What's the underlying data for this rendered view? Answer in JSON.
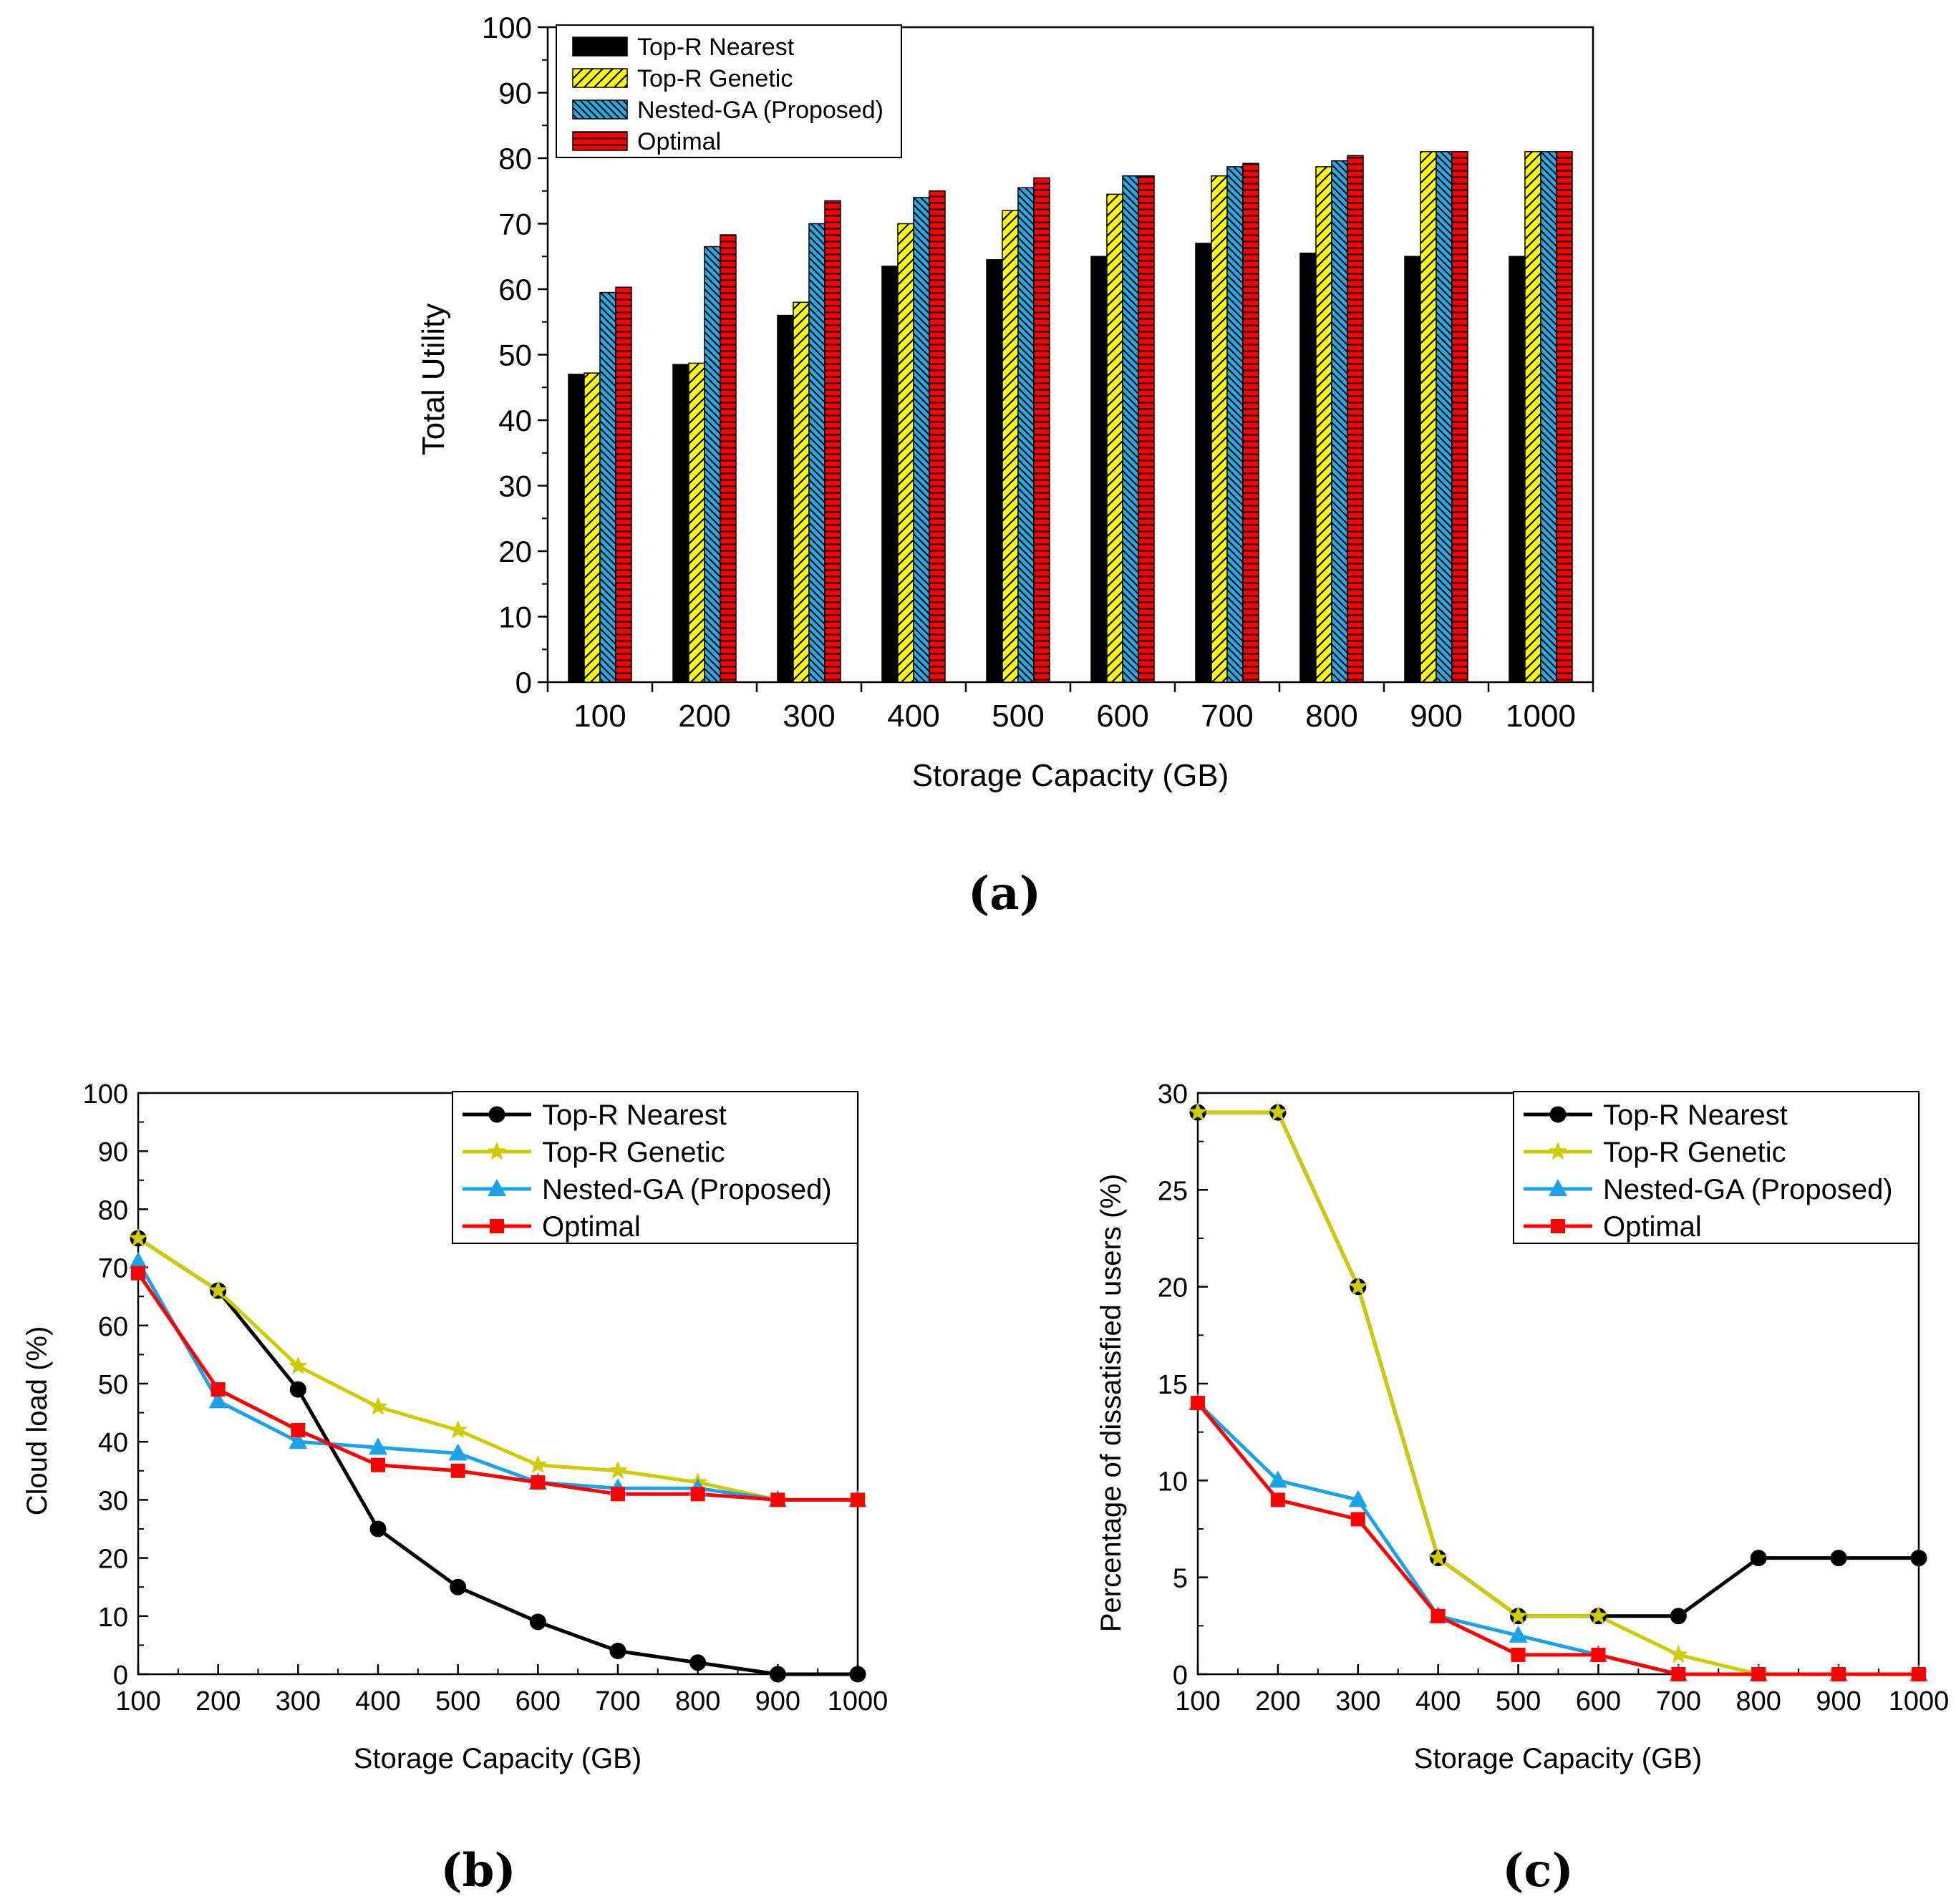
{
  "chart_data": [
    {
      "id": "a",
      "type": "bar",
      "caption": "(a)",
      "xlabel": "Storage Capacity (GB)",
      "ylabel": "Total Utility",
      "categories": [
        "100",
        "200",
        "300",
        "400",
        "500",
        "600",
        "700",
        "800",
        "900",
        "1000"
      ],
      "ylim": [
        0,
        100
      ],
      "yticks": [
        "0",
        "10",
        "20",
        "30",
        "40",
        "50",
        "60",
        "70",
        "80",
        "90",
        "100"
      ],
      "legend_position": "top-left",
      "series": [
        {
          "name": "Top-R Nearest",
          "color": "#000000",
          "pattern": "solid",
          "values": [
            47,
            48.5,
            56,
            63.5,
            64.5,
            65,
            67,
            65.5,
            65,
            65
          ]
        },
        {
          "name": "Top-R Genetic",
          "color": "#ffff00",
          "pattern": "diag",
          "values": [
            47.2,
            48.7,
            58,
            70,
            72,
            74.5,
            77.3,
            78.7,
            81,
            81
          ]
        },
        {
          "name": "Nested-GA (Proposed)",
          "color": "#2aa8e0",
          "pattern": "diag",
          "values": [
            59.5,
            66.5,
            70,
            74,
            75.5,
            77.3,
            78.7,
            79.6,
            81,
            81
          ]
        },
        {
          "name": "Optimal",
          "color": "#ff0000",
          "pattern": "horiz",
          "values": [
            60.3,
            68.3,
            73.5,
            75,
            77,
            77.3,
            79.2,
            80.4,
            81,
            81
          ]
        }
      ]
    },
    {
      "id": "b",
      "type": "line",
      "caption": "(b)",
      "xlabel": "Storage Capacity (GB)",
      "ylabel": "Cloud load (%)",
      "x": [
        100,
        200,
        300,
        400,
        500,
        600,
        700,
        800,
        900,
        1000
      ],
      "xticks": [
        "100",
        "200",
        "300",
        "400",
        "500",
        "600",
        "700",
        "800",
        "900",
        "1000"
      ],
      "ylim": [
        0,
        100
      ],
      "yticks": [
        "0",
        "10",
        "20",
        "30",
        "40",
        "50",
        "60",
        "70",
        "80",
        "90",
        "100"
      ],
      "legend_position": "top-right",
      "series": [
        {
          "name": "Top-R Nearest",
          "color": "#000000",
          "marker": "circle",
          "values": [
            75,
            66,
            49,
            25,
            15,
            9,
            4,
            2,
            0,
            0
          ]
        },
        {
          "name": "Top-R Genetic",
          "color": "#cccc00",
          "marker": "star",
          "values": [
            75,
            66,
            53,
            46,
            42,
            36,
            35,
            33,
            30,
            30
          ]
        },
        {
          "name": "Nested-GA (Proposed)",
          "color": "#1aa3e8",
          "marker": "triangle",
          "values": [
            71,
            47,
            40,
            39,
            38,
            33,
            32,
            32,
            30,
            30
          ]
        },
        {
          "name": "Optimal",
          "color": "#ff0000",
          "marker": "square",
          "values": [
            69,
            49,
            42,
            36,
            35,
            33,
            31,
            31,
            30,
            30
          ]
        }
      ]
    },
    {
      "id": "c",
      "type": "line",
      "caption": "(c)",
      "xlabel": "Storage Capacity (GB)",
      "ylabel": "Percentage of dissatisfied users (%)",
      "x": [
        100,
        200,
        300,
        400,
        500,
        600,
        700,
        800,
        900,
        1000
      ],
      "xticks": [
        "100",
        "200",
        "300",
        "400",
        "500",
        "600",
        "700",
        "800",
        "900",
        "1000"
      ],
      "ylim": [
        0,
        30
      ],
      "yticks": [
        "0",
        "5",
        "10",
        "15",
        "20",
        "25",
        "30"
      ],
      "legend_position": "top-right",
      "series": [
        {
          "name": "Top-R Nearest",
          "color": "#000000",
          "marker": "circle",
          "values": [
            29,
            29,
            20,
            6,
            3,
            3,
            3,
            6,
            6,
            6
          ]
        },
        {
          "name": "Top-R Genetic",
          "color": "#cccc00",
          "marker": "star",
          "values": [
            29,
            29,
            20,
            6,
            3,
            3,
            1,
            0,
            0,
            0
          ]
        },
        {
          "name": "Nested-GA (Proposed)",
          "color": "#1aa3e8",
          "marker": "triangle",
          "values": [
            14,
            10,
            9,
            3,
            2,
            1,
            0,
            0,
            0,
            0
          ]
        },
        {
          "name": "Optimal",
          "color": "#ff0000",
          "marker": "square",
          "values": [
            14,
            9,
            8,
            3,
            1,
            1,
            0,
            0,
            0,
            0
          ]
        }
      ]
    }
  ]
}
